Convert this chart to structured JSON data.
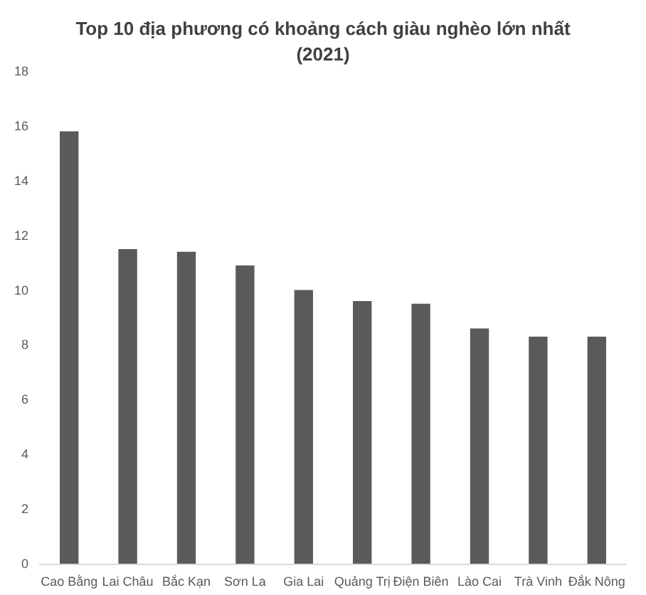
{
  "chart_data": {
    "type": "bar",
    "title": "Top 10 địa phương có khoảng cách giàu nghèo lớn nhất\n(2021)",
    "categories": [
      "Cao Bằng",
      "Lai Châu",
      "Bắc Kạn",
      "Sơn La",
      "Gia Lai",
      "Quảng Trị",
      "Điện Biên",
      "Lào Cai",
      "Trà Vinh",
      "Đắk Nông"
    ],
    "values": [
      15.8,
      11.5,
      11.4,
      10.9,
      10.0,
      9.6,
      9.5,
      8.6,
      8.3,
      8.3
    ],
    "color": "#5a5a5a",
    "ylim": [
      0,
      18
    ],
    "yticks": [
      0,
      2,
      4,
      6,
      8,
      10,
      12,
      14,
      16,
      18
    ],
    "grid": false
  }
}
